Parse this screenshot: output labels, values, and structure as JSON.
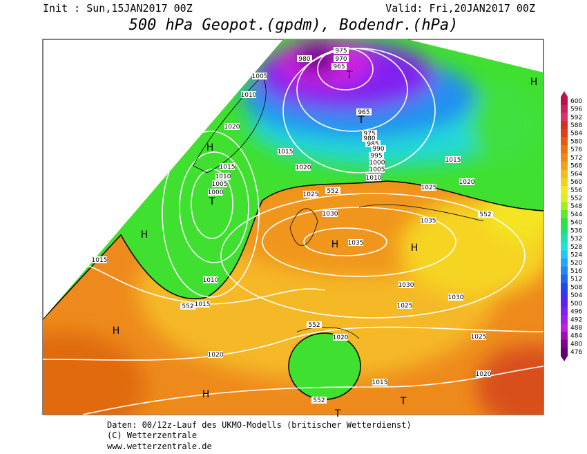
{
  "header": {
    "init": "Init : Sun,15JAN2017 00Z",
    "valid": "Valid: Fri,20JAN2017 00Z",
    "title": "500 hPa Geopot.(gpdm), Bodendr.(hPa)"
  },
  "isobar_labels": [
    "980",
    "975",
    "970",
    "965",
    "1005",
    "1010",
    "1020",
    "1015",
    "1020",
    "1015",
    "1010",
    "1005",
    "1000",
    "965",
    "975",
    "980",
    "985",
    "990",
    "995",
    "1000",
    "1005",
    "1010",
    "1015",
    "1020",
    "1025",
    "1025",
    "552",
    "552",
    "1030",
    "1035",
    "1035",
    "1010",
    "1015",
    "552",
    "1015",
    "1030",
    "1030",
    "1025",
    "552",
    "1020",
    "1025",
    "1020",
    "1020",
    "1015",
    "552"
  ],
  "centers": [
    "H",
    "H",
    "T",
    "T",
    "T",
    "H",
    "H",
    "H",
    "H",
    "H",
    "T",
    "T"
  ],
  "colorbar": {
    "labels": [
      600,
      596,
      592,
      588,
      584,
      580,
      576,
      572,
      568,
      564,
      560,
      556,
      552,
      548,
      544,
      540,
      536,
      532,
      528,
      524,
      520,
      516,
      512,
      508,
      504,
      500,
      496,
      492,
      488,
      484,
      480,
      476
    ]
  },
  "footer": {
    "line1": "Daten: 00/12z-Lauf des UKMO-Modells (britischer Wetterdienst)",
    "line2": "(C) Wetterzentrale",
    "line3": "www.wetterzentrale.de"
  }
}
